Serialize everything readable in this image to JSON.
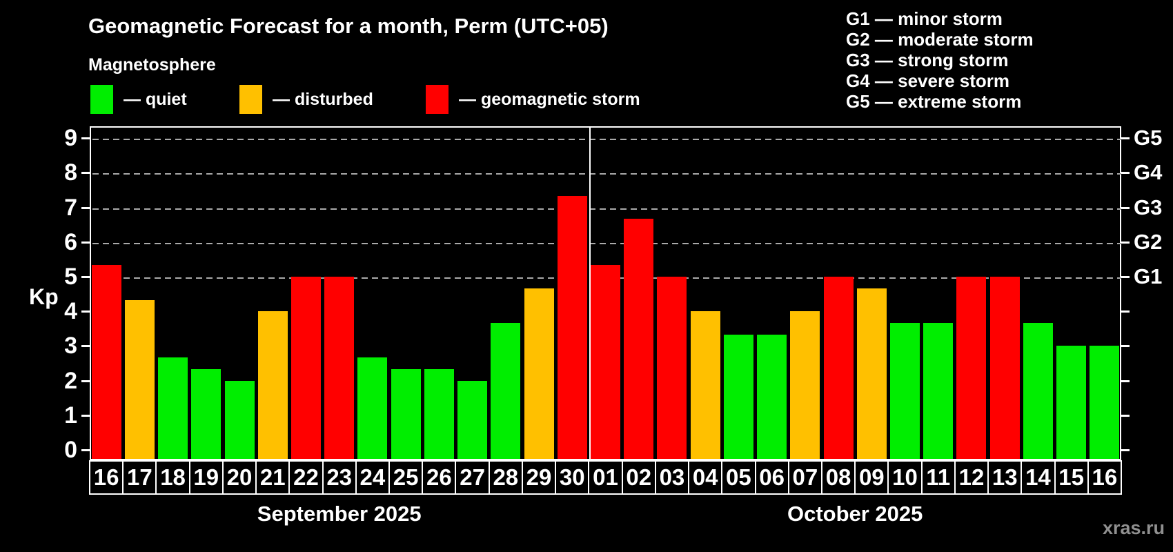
{
  "title": "Geomagnetic Forecast for a month, Perm (UTC+05)",
  "subtitle": "Magnetosphere",
  "legend": {
    "items": [
      {
        "status": "quiet",
        "label": "— quiet"
      },
      {
        "status": "disturbed",
        "label": "— disturbed"
      },
      {
        "status": "storm",
        "label": "— geomagnetic storm"
      }
    ]
  },
  "g_legend": {
    "lines": [
      "G1 — minor storm",
      "G2 — moderate storm",
      "G3 — strong storm",
      "G4 — severe storm",
      "G5 — extreme storm"
    ]
  },
  "watermark": "xras.ru",
  "chart_data": {
    "type": "bar",
    "ylabel": "Kp",
    "ylim": [
      0,
      9
    ],
    "yticks": [
      0,
      1,
      2,
      3,
      4,
      5,
      6,
      7,
      8,
      9
    ],
    "grid": "horizontal dashed lines at Kp 5-9 only",
    "gridlines_at": [
      5,
      6,
      7,
      8,
      9
    ],
    "right_axis_labels": [
      {
        "kp": 5,
        "label": "G1"
      },
      {
        "kp": 6,
        "label": "G2"
      },
      {
        "kp": 7,
        "label": "G3"
      },
      {
        "kp": 8,
        "label": "G4"
      },
      {
        "kp": 9,
        "label": "G5"
      }
    ],
    "colors": {
      "quiet": "#00ee00",
      "disturbed": "#ffc000",
      "storm": "#ff0000",
      "axis": "#ffffff",
      "gridline": "#aaaaaa",
      "text": "#ffffff",
      "watermark": "#909090"
    },
    "legend_position": "top-left",
    "months": [
      {
        "label": "September 2025",
        "days": [
          {
            "day": "16",
            "kp": 5.33,
            "status": "storm"
          },
          {
            "day": "17",
            "kp": 4.33,
            "status": "disturbed"
          },
          {
            "day": "18",
            "kp": 2.67,
            "status": "quiet"
          },
          {
            "day": "19",
            "kp": 2.33,
            "status": "quiet"
          },
          {
            "day": "20",
            "kp": 2.0,
            "status": "quiet"
          },
          {
            "day": "21",
            "kp": 4.0,
            "status": "disturbed"
          },
          {
            "day": "22",
            "kp": 5.0,
            "status": "storm"
          },
          {
            "day": "23",
            "kp": 5.0,
            "status": "storm"
          },
          {
            "day": "24",
            "kp": 2.67,
            "status": "quiet"
          },
          {
            "day": "25",
            "kp": 2.33,
            "status": "quiet"
          },
          {
            "day": "26",
            "kp": 2.33,
            "status": "quiet"
          },
          {
            "day": "27",
            "kp": 2.0,
            "status": "quiet"
          },
          {
            "day": "28",
            "kp": 3.67,
            "status": "quiet"
          },
          {
            "day": "29",
            "kp": 4.67,
            "status": "disturbed"
          },
          {
            "day": "30",
            "kp": 7.33,
            "status": "storm"
          }
        ]
      },
      {
        "label": "October 2025",
        "days": [
          {
            "day": "01",
            "kp": 5.33,
            "status": "storm"
          },
          {
            "day": "02",
            "kp": 6.67,
            "status": "storm"
          },
          {
            "day": "03",
            "kp": 5.0,
            "status": "storm"
          },
          {
            "day": "04",
            "kp": 4.0,
            "status": "disturbed"
          },
          {
            "day": "05",
            "kp": 3.33,
            "status": "quiet"
          },
          {
            "day": "06",
            "kp": 3.33,
            "status": "quiet"
          },
          {
            "day": "07",
            "kp": 4.0,
            "status": "disturbed"
          },
          {
            "day": "08",
            "kp": 5.0,
            "status": "storm"
          },
          {
            "day": "09",
            "kp": 4.67,
            "status": "disturbed"
          },
          {
            "day": "10",
            "kp": 3.67,
            "status": "quiet"
          },
          {
            "day": "11",
            "kp": 3.67,
            "status": "quiet"
          },
          {
            "day": "12",
            "kp": 5.0,
            "status": "storm"
          },
          {
            "day": "13",
            "kp": 5.0,
            "status": "storm"
          },
          {
            "day": "14",
            "kp": 3.67,
            "status": "quiet"
          },
          {
            "day": "15",
            "kp": 3.0,
            "status": "quiet"
          },
          {
            "day": "16",
            "kp": 3.0,
            "status": "quiet"
          }
        ]
      }
    ]
  }
}
